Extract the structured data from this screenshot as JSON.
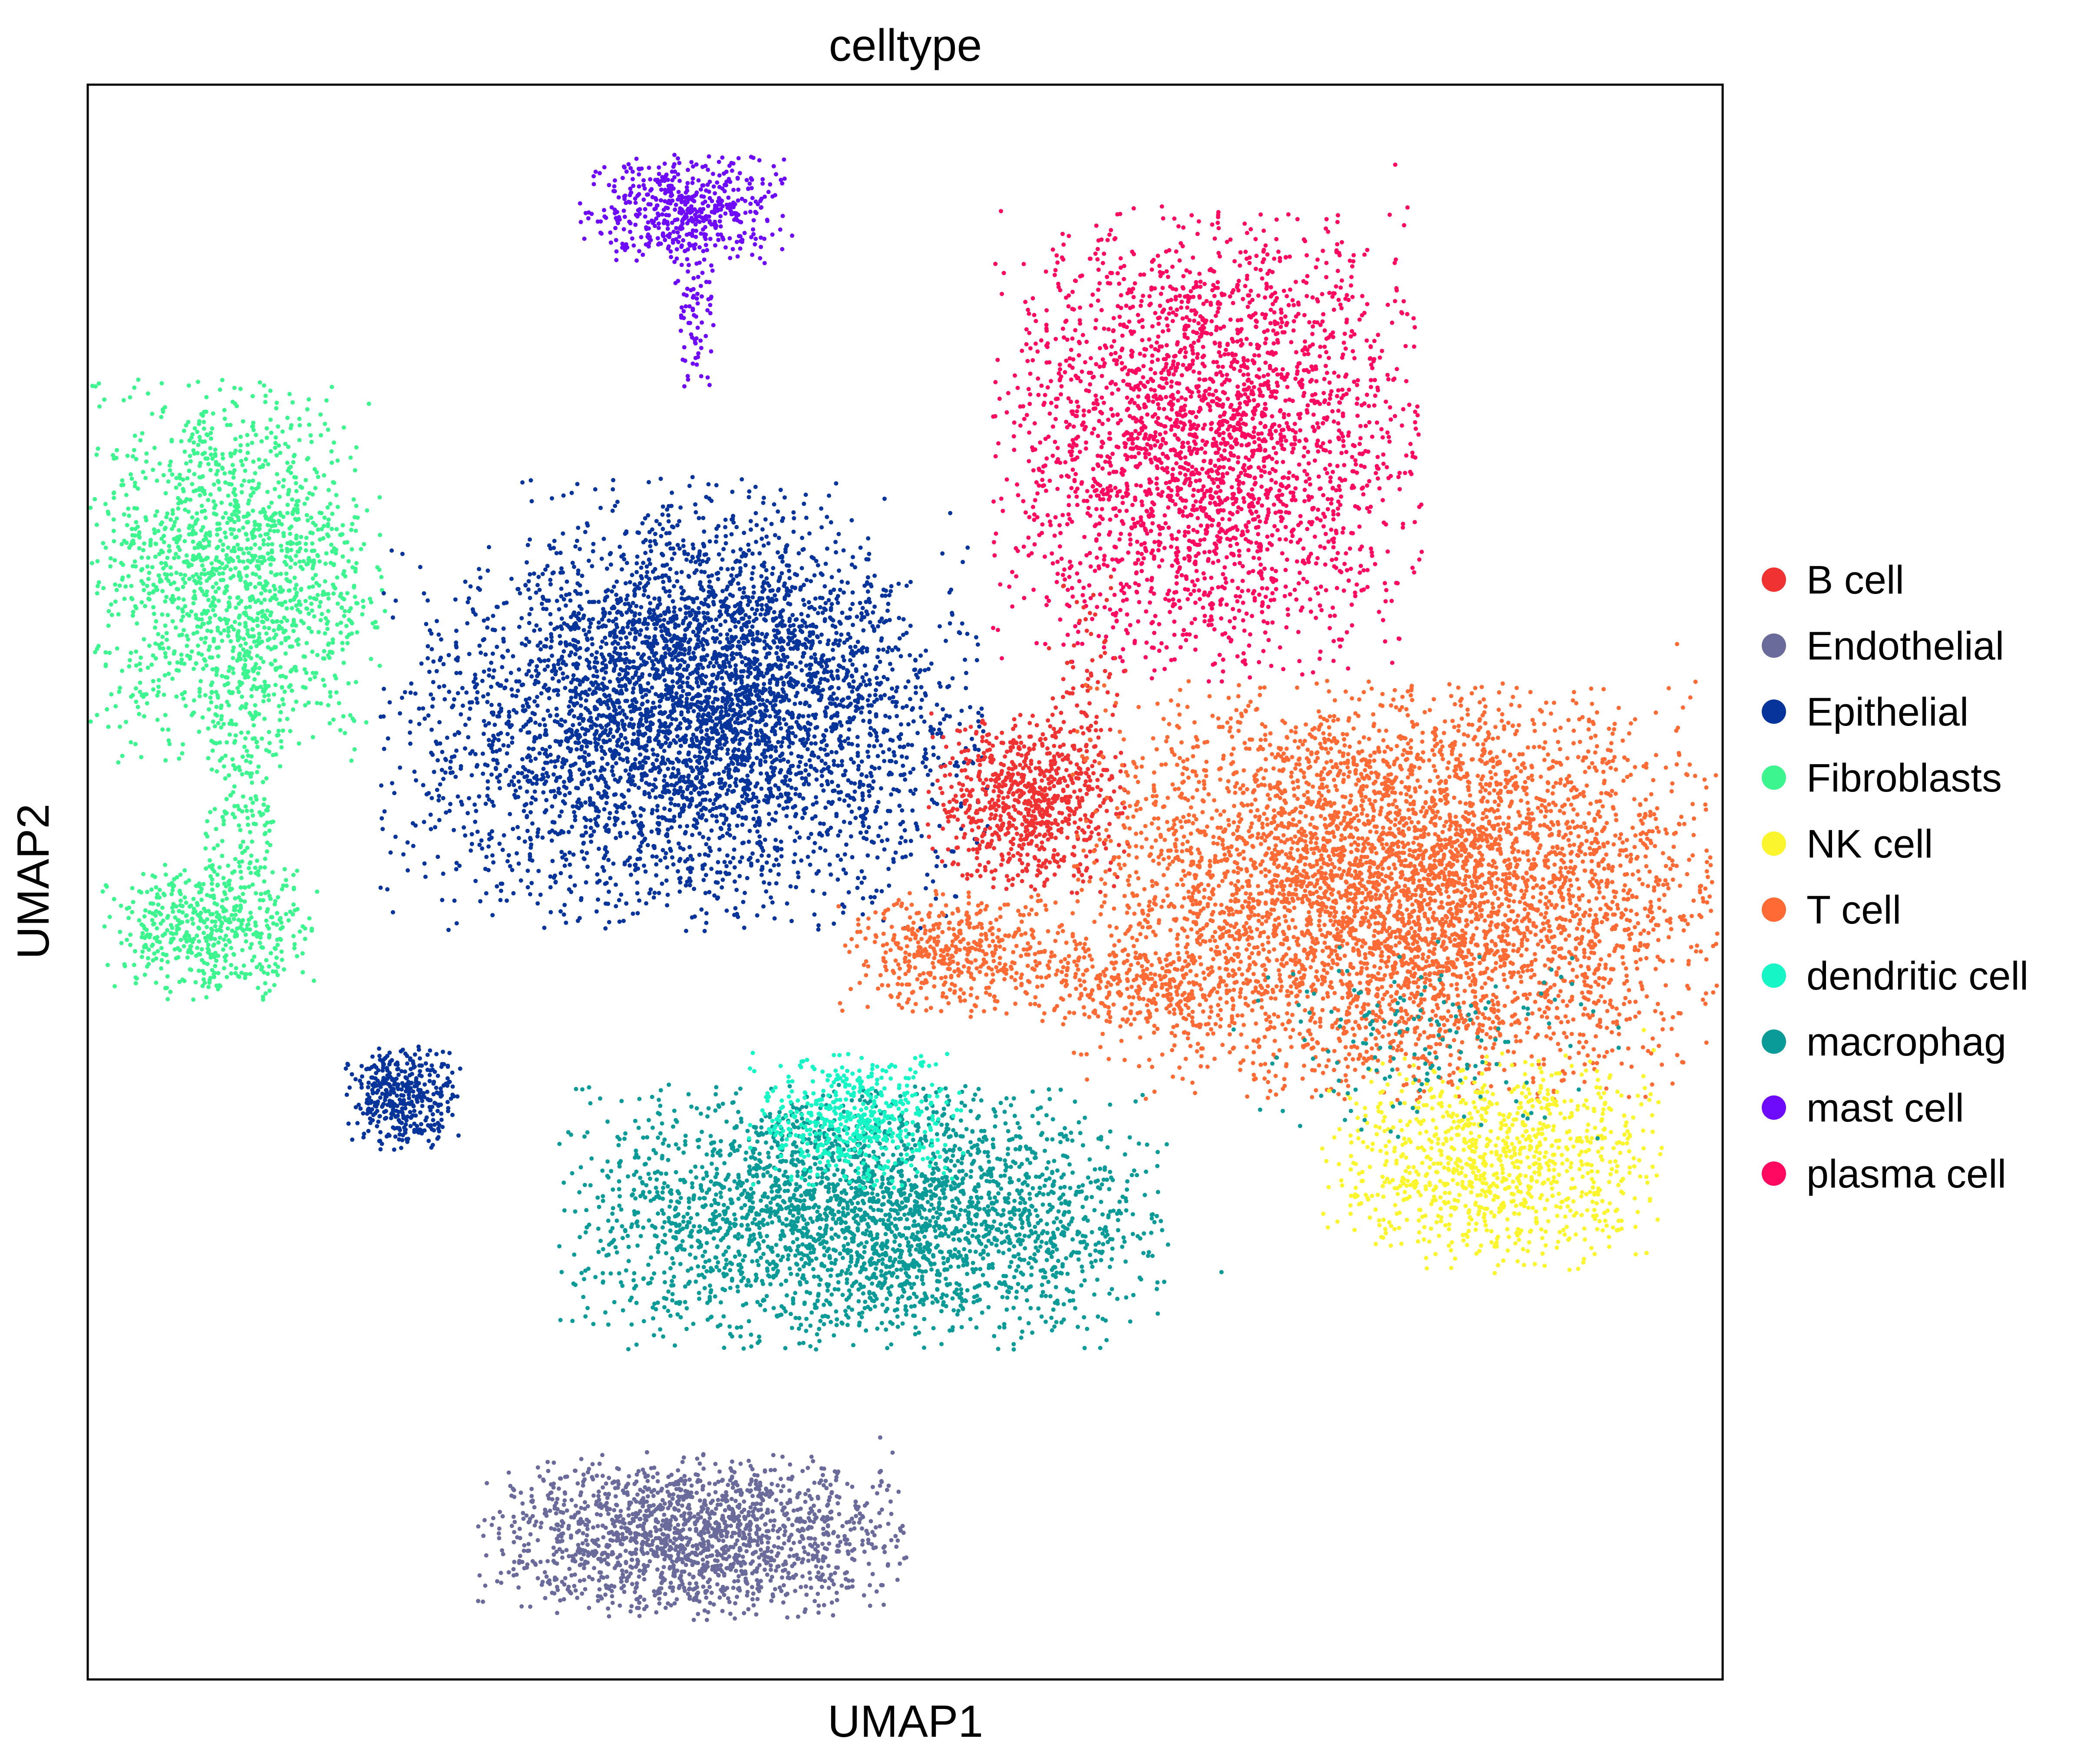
{
  "chart_data": {
    "type": "scatter",
    "title": "celltype",
    "xlabel": "UMAP1",
    "ylabel": "UMAP2",
    "xlim": [
      0,
      100
    ],
    "ylim": [
      0,
      100
    ],
    "ticks": "none",
    "grid": false,
    "legend_position": "right",
    "legend": [
      {
        "label": "B cell",
        "color": "#F03232"
      },
      {
        "label": "Endothelial",
        "color": "#6A6A9B"
      },
      {
        "label": "Epithelial",
        "color": "#06349A"
      },
      {
        "label": "Fibroblasts",
        "color": "#3CF58E"
      },
      {
        "label": "NK cell",
        "color": "#FAF52D"
      },
      {
        "label": "T cell",
        "color": "#FF6A35"
      },
      {
        "label": "dendritic cell",
        "color": "#15F5C5"
      },
      {
        "label": "macrophag",
        "color": "#0A9A97"
      },
      {
        "label": "mast cell",
        "color": "#6E0BFB"
      },
      {
        "label": "plasma cell",
        "color": "#FF0A60"
      }
    ],
    "clusters": [
      {
        "celltype": "mast cell",
        "cx": 36.5,
        "cy": 92.2,
        "sx": 3.0,
        "sy": 1.6,
        "n": 500
      },
      {
        "celltype": "mast cell",
        "cx": 37.2,
        "cy": 86.5,
        "sx": 0.6,
        "sy": 3.0,
        "n": 90
      },
      {
        "celltype": "plasma cell",
        "cx": 68.5,
        "cy": 77.5,
        "sx": 6.0,
        "sy": 6.8,
        "n": 2800
      },
      {
        "celltype": "Fibroblasts",
        "cx": 9.0,
        "cy": 69.5,
        "sx": 4.2,
        "sy": 5.5,
        "n": 1600
      },
      {
        "celltype": "Fibroblasts",
        "cx": 9.5,
        "cy": 55.0,
        "sx": 1.2,
        "sy": 5.0,
        "n": 200
      },
      {
        "celltype": "Fibroblasts",
        "cx": 7.5,
        "cy": 47.0,
        "sx": 3.0,
        "sy": 2.0,
        "n": 500
      },
      {
        "celltype": "Epithelial",
        "cx": 36.5,
        "cy": 59.0,
        "sx": 8.5,
        "sy": 5.5,
        "n": 3200
      },
      {
        "celltype": "Epithelial",
        "cx": 38.0,
        "cy": 64.5,
        "sx": 5.5,
        "sy": 5.0,
        "n": 1500
      },
      {
        "celltype": "Epithelial",
        "cx": 19.3,
        "cy": 36.5,
        "sx": 1.6,
        "sy": 1.5,
        "n": 400
      },
      {
        "celltype": "B cell",
        "cx": 57.5,
        "cy": 55.0,
        "sx": 2.8,
        "sy": 2.6,
        "n": 800
      },
      {
        "celltype": "B cell",
        "cx": 61.0,
        "cy": 62.0,
        "sx": 1.2,
        "sy": 3.5,
        "n": 80
      },
      {
        "celltype": "T cell",
        "cx": 80.0,
        "cy": 49.5,
        "sx": 9.0,
        "sy": 6.0,
        "n": 5200
      },
      {
        "celltype": "T cell",
        "cx": 53.5,
        "cy": 45.5,
        "sx": 3.5,
        "sy": 1.8,
        "n": 500
      },
      {
        "celltype": "T cell",
        "cx": 64.5,
        "cy": 43.5,
        "sx": 3.5,
        "sy": 1.2,
        "n": 250
      },
      {
        "celltype": "NK cell",
        "cx": 86.0,
        "cy": 32.5,
        "sx": 4.8,
        "sy": 3.2,
        "n": 1000
      },
      {
        "celltype": "macrophag",
        "cx": 47.5,
        "cy": 29.0,
        "sx": 8.5,
        "sy": 3.8,
        "n": 3000
      },
      {
        "celltype": "macrophag",
        "cx": 82.0,
        "cy": 40.0,
        "sx": 5.5,
        "sy": 3.0,
        "n": 160
      },
      {
        "celltype": "dendritic cell",
        "cx": 47.0,
        "cy": 35.0,
        "sx": 3.0,
        "sy": 2.0,
        "n": 500
      },
      {
        "celltype": "Endothelial",
        "cx": 37.0,
        "cy": 9.0,
        "sx": 6.0,
        "sy": 2.4,
        "n": 1700
      }
    ]
  }
}
